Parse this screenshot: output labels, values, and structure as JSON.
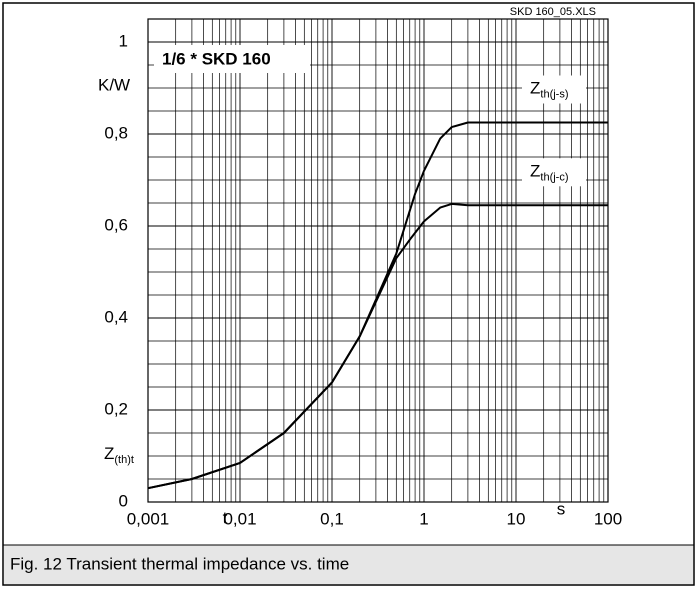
{
  "chart_data": {
    "type": "line",
    "title": "1/6 * SKD 160",
    "file_label": "SKD 160_05.XLS",
    "caption": "Fig. 12 Transient thermal impedance vs. time",
    "y_unit": "K/W",
    "y_label": {
      "main": "Z",
      "sub": "(th)t"
    },
    "x_label": "t",
    "x_unit": "s",
    "x_log": true,
    "grid": true,
    "xlim": [
      0.001,
      100
    ],
    "xticks": [
      {
        "value": 0.001,
        "label": "0,001"
      },
      {
        "value": 0.01,
        "label": "0,01"
      },
      {
        "value": 0.1,
        "label": "0,1"
      },
      1,
      10,
      100
    ],
    "ylim": [
      0,
      1.05
    ],
    "yticks": [
      0,
      {
        "value": 0.2,
        "label": "0,2"
      },
      {
        "value": 0.4,
        "label": "0,4"
      },
      {
        "value": 0.6,
        "label": "0,6"
      },
      {
        "value": 0.8,
        "label": "0,8"
      },
      1
    ],
    "yminorticks": [
      0.05,
      0.1,
      0.15,
      0.25,
      0.3,
      0.35,
      0.45,
      0.5,
      0.55,
      0.65,
      0.7,
      0.75,
      0.85,
      0.9,
      0.95,
      1.05
    ],
    "series": [
      {
        "name": "Z",
        "subscript": "th(j-s)",
        "color": "#000000",
        "x": [
          0.001,
          0.003,
          0.01,
          0.03,
          0.1,
          0.2,
          0.5,
          0.8,
          1,
          1.5,
          2,
          3,
          100
        ],
        "values": [
          0.03,
          0.05,
          0.085,
          0.15,
          0.26,
          0.36,
          0.54,
          0.67,
          0.72,
          0.79,
          0.815,
          0.825,
          0.825
        ]
      },
      {
        "name": "Z",
        "subscript": "th(j-c)",
        "color": "#000000",
        "x": [
          0.001,
          0.003,
          0.01,
          0.03,
          0.1,
          0.2,
          0.5,
          0.7,
          1,
          1.5,
          2,
          3,
          100
        ],
        "values": [
          0.03,
          0.05,
          0.085,
          0.15,
          0.26,
          0.36,
          0.53,
          0.57,
          0.61,
          0.64,
          0.648,
          0.645,
          0.645
        ]
      }
    ]
  }
}
